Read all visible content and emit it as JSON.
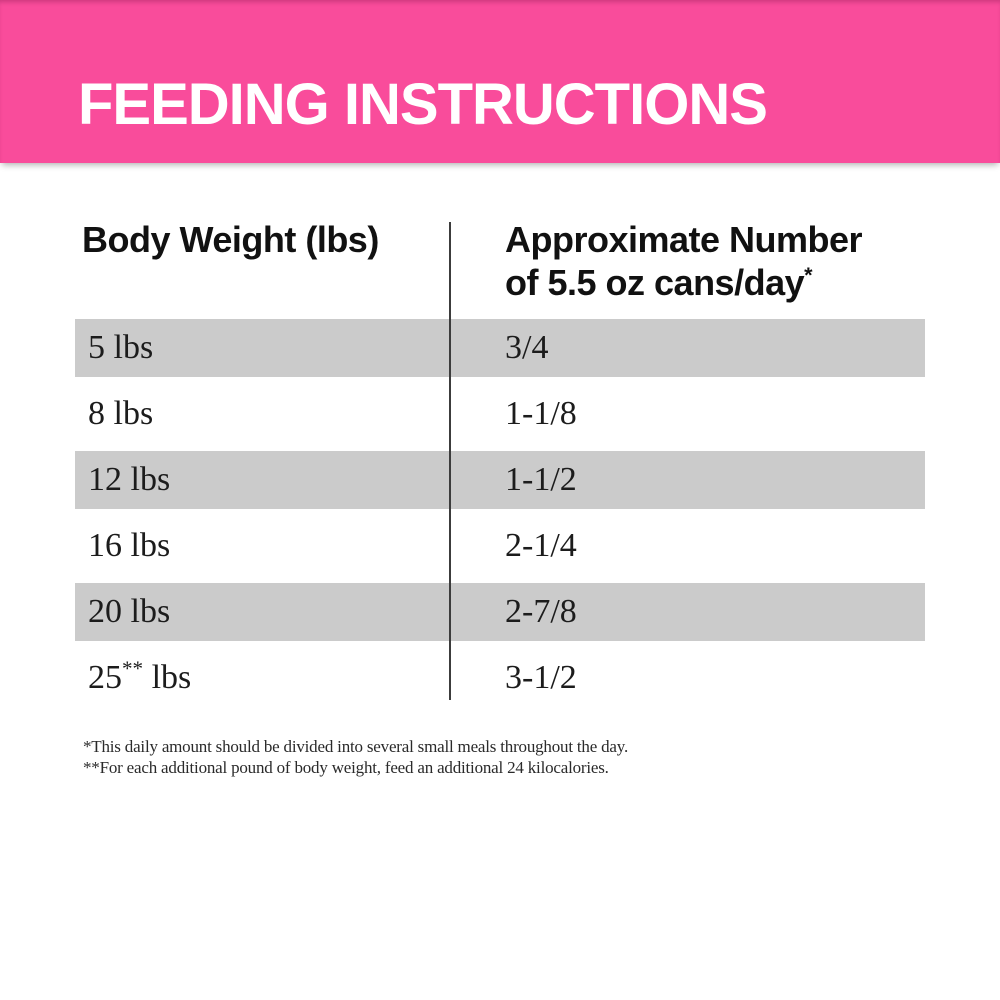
{
  "colors": {
    "banner_pink": "#f94c9b",
    "row_gray": "#cbcbcb",
    "divider": "#3c3c3c",
    "text": "#1c1c1c"
  },
  "header": {
    "title": "FEEDING INSTRUCTIONS"
  },
  "table": {
    "columns": [
      {
        "label": "Body Weight (lbs)"
      },
      {
        "line1": "Approximate Number",
        "line2": "of 5.5 oz cans/day",
        "line2_sup": "*"
      }
    ],
    "rows": [
      {
        "weight": "5",
        "weight_sup": "",
        "weight_unit": " lbs",
        "cans": "3/4"
      },
      {
        "weight": "8",
        "weight_sup": "",
        "weight_unit": " lbs",
        "cans": "1-1/8"
      },
      {
        "weight": "12",
        "weight_sup": "",
        "weight_unit": " lbs",
        "cans": "1-1/2"
      },
      {
        "weight": "16",
        "weight_sup": "",
        "weight_unit": " lbs",
        "cans": "2-1/4"
      },
      {
        "weight": "20",
        "weight_sup": "",
        "weight_unit": " lbs",
        "cans": "2-7/8"
      },
      {
        "weight": "25",
        "weight_sup": "**",
        "weight_unit": " lbs",
        "cans": "3-1/2"
      }
    ]
  },
  "footnotes": [
    "*This daily amount should be divided into several small meals throughout the day.",
    "**For each additional pound of body weight, feed an additional 24 kilocalories."
  ]
}
